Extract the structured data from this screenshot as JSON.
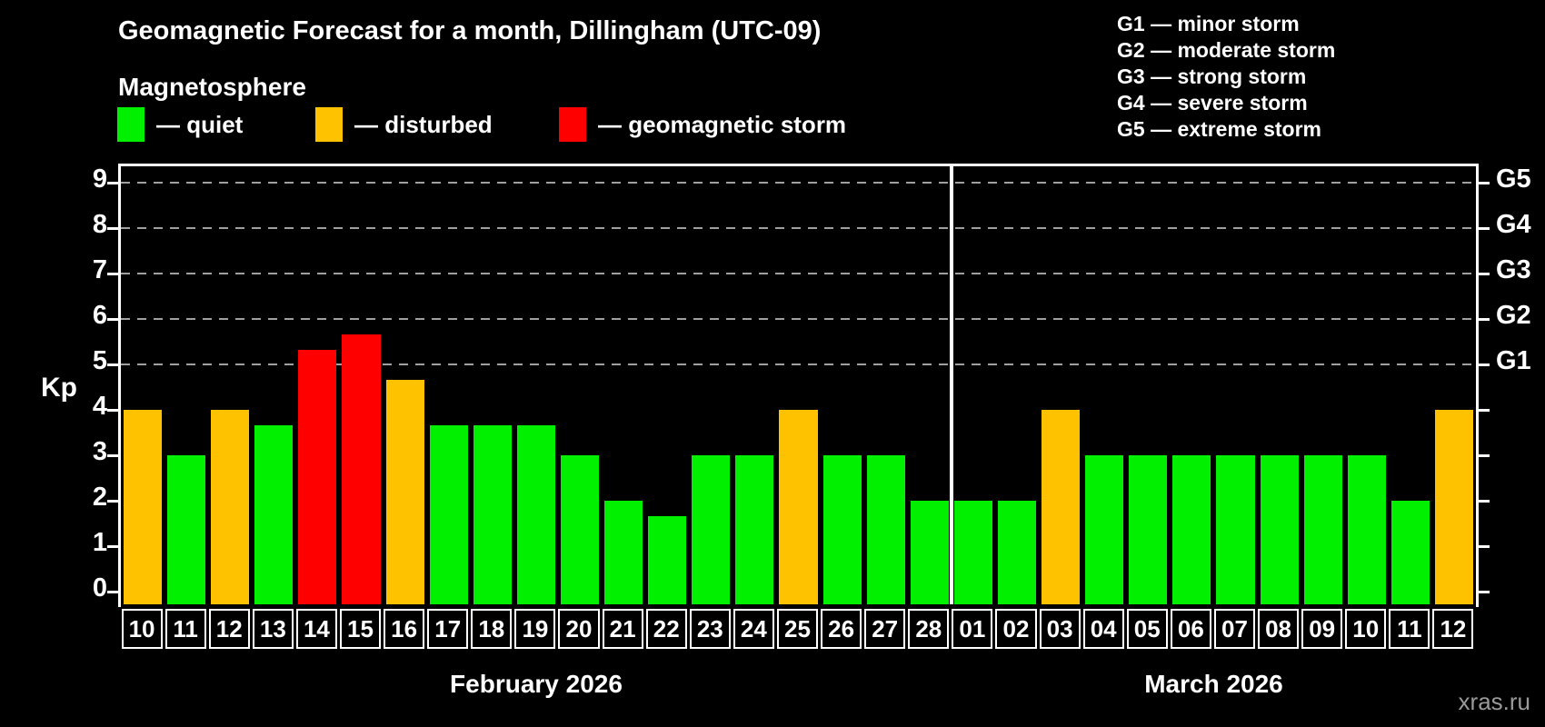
{
  "page": {
    "title": "Geomagnetic Forecast for a month, Dillingham (UTC-09)",
    "subtitle": "Magnetosphere",
    "watermark": "xras.ru",
    "kp_axis_label": "Kp"
  },
  "colors": {
    "quiet": "#00f000",
    "disturbed": "#ffc200",
    "storm": "#ff0000",
    "grid": "#a0a0a0",
    "axis": "#ffffff",
    "background": "#000000"
  },
  "legend": [
    {
      "status": "quiet",
      "label": "— quiet"
    },
    {
      "status": "disturbed",
      "label": "— disturbed"
    },
    {
      "status": "storm",
      "label": "— geomagnetic storm"
    }
  ],
  "g_legend": [
    "G1 — minor storm",
    "G2 — moderate storm",
    "G3 — strong storm",
    "G4 — severe storm",
    "G5 — extreme storm"
  ],
  "chart_data": {
    "type": "bar",
    "title": "Geomagnetic Forecast for a month, Dillingham (UTC-09)",
    "ylabel": "Kp",
    "ylim": [
      0,
      9.6
    ],
    "yticks": [
      0,
      1,
      2,
      3,
      4,
      5,
      6,
      7,
      8,
      9
    ],
    "gridlines": {
      "levels": [
        5,
        6,
        7,
        8,
        9
      ],
      "style": "dashed"
    },
    "right_axis": {
      "labels": [
        "G1",
        "G2",
        "G3",
        "G4",
        "G5"
      ],
      "levels": [
        5,
        6,
        7,
        8,
        9
      ]
    },
    "legend_position": "top-left",
    "month_sections": [
      {
        "label": "February 2026",
        "days": 19
      },
      {
        "label": "March 2026",
        "days": 12
      }
    ],
    "bars": [
      {
        "month": "February",
        "day": "10",
        "value": 4.0,
        "status": "disturbed"
      },
      {
        "month": "February",
        "day": "11",
        "value": 3.0,
        "status": "quiet"
      },
      {
        "month": "February",
        "day": "12",
        "value": 4.0,
        "status": "disturbed"
      },
      {
        "month": "February",
        "day": "13",
        "value": 3.67,
        "status": "quiet"
      },
      {
        "month": "February",
        "day": "14",
        "value": 5.33,
        "status": "storm"
      },
      {
        "month": "February",
        "day": "15",
        "value": 5.67,
        "status": "storm"
      },
      {
        "month": "February",
        "day": "16",
        "value": 4.67,
        "status": "disturbed"
      },
      {
        "month": "February",
        "day": "17",
        "value": 3.67,
        "status": "quiet"
      },
      {
        "month": "February",
        "day": "18",
        "value": 3.67,
        "status": "quiet"
      },
      {
        "month": "February",
        "day": "19",
        "value": 3.67,
        "status": "quiet"
      },
      {
        "month": "February",
        "day": "20",
        "value": 3.0,
        "status": "quiet"
      },
      {
        "month": "February",
        "day": "21",
        "value": 2.0,
        "status": "quiet"
      },
      {
        "month": "February",
        "day": "22",
        "value": 1.67,
        "status": "quiet"
      },
      {
        "month": "February",
        "day": "23",
        "value": 3.0,
        "status": "quiet"
      },
      {
        "month": "February",
        "day": "24",
        "value": 3.0,
        "status": "quiet"
      },
      {
        "month": "February",
        "day": "25",
        "value": 4.0,
        "status": "disturbed"
      },
      {
        "month": "February",
        "day": "26",
        "value": 3.0,
        "status": "quiet"
      },
      {
        "month": "February",
        "day": "27",
        "value": 3.0,
        "status": "quiet"
      },
      {
        "month": "February",
        "day": "28",
        "value": 2.0,
        "status": "quiet"
      },
      {
        "month": "March",
        "day": "01",
        "value": 2.0,
        "status": "quiet"
      },
      {
        "month": "March",
        "day": "02",
        "value": 2.0,
        "status": "quiet"
      },
      {
        "month": "March",
        "day": "03",
        "value": 4.0,
        "status": "disturbed"
      },
      {
        "month": "March",
        "day": "04",
        "value": 3.0,
        "status": "quiet"
      },
      {
        "month": "March",
        "day": "05",
        "value": 3.0,
        "status": "quiet"
      },
      {
        "month": "March",
        "day": "06",
        "value": 3.0,
        "status": "quiet"
      },
      {
        "month": "March",
        "day": "07",
        "value": 3.0,
        "status": "quiet"
      },
      {
        "month": "March",
        "day": "08",
        "value": 3.0,
        "status": "quiet"
      },
      {
        "month": "March",
        "day": "09",
        "value": 3.0,
        "status": "quiet"
      },
      {
        "month": "March",
        "day": "10",
        "value": 3.0,
        "status": "quiet"
      },
      {
        "month": "March",
        "day": "11",
        "value": 2.0,
        "status": "quiet"
      },
      {
        "month": "March",
        "day": "12",
        "value": 4.0,
        "status": "disturbed"
      }
    ]
  }
}
